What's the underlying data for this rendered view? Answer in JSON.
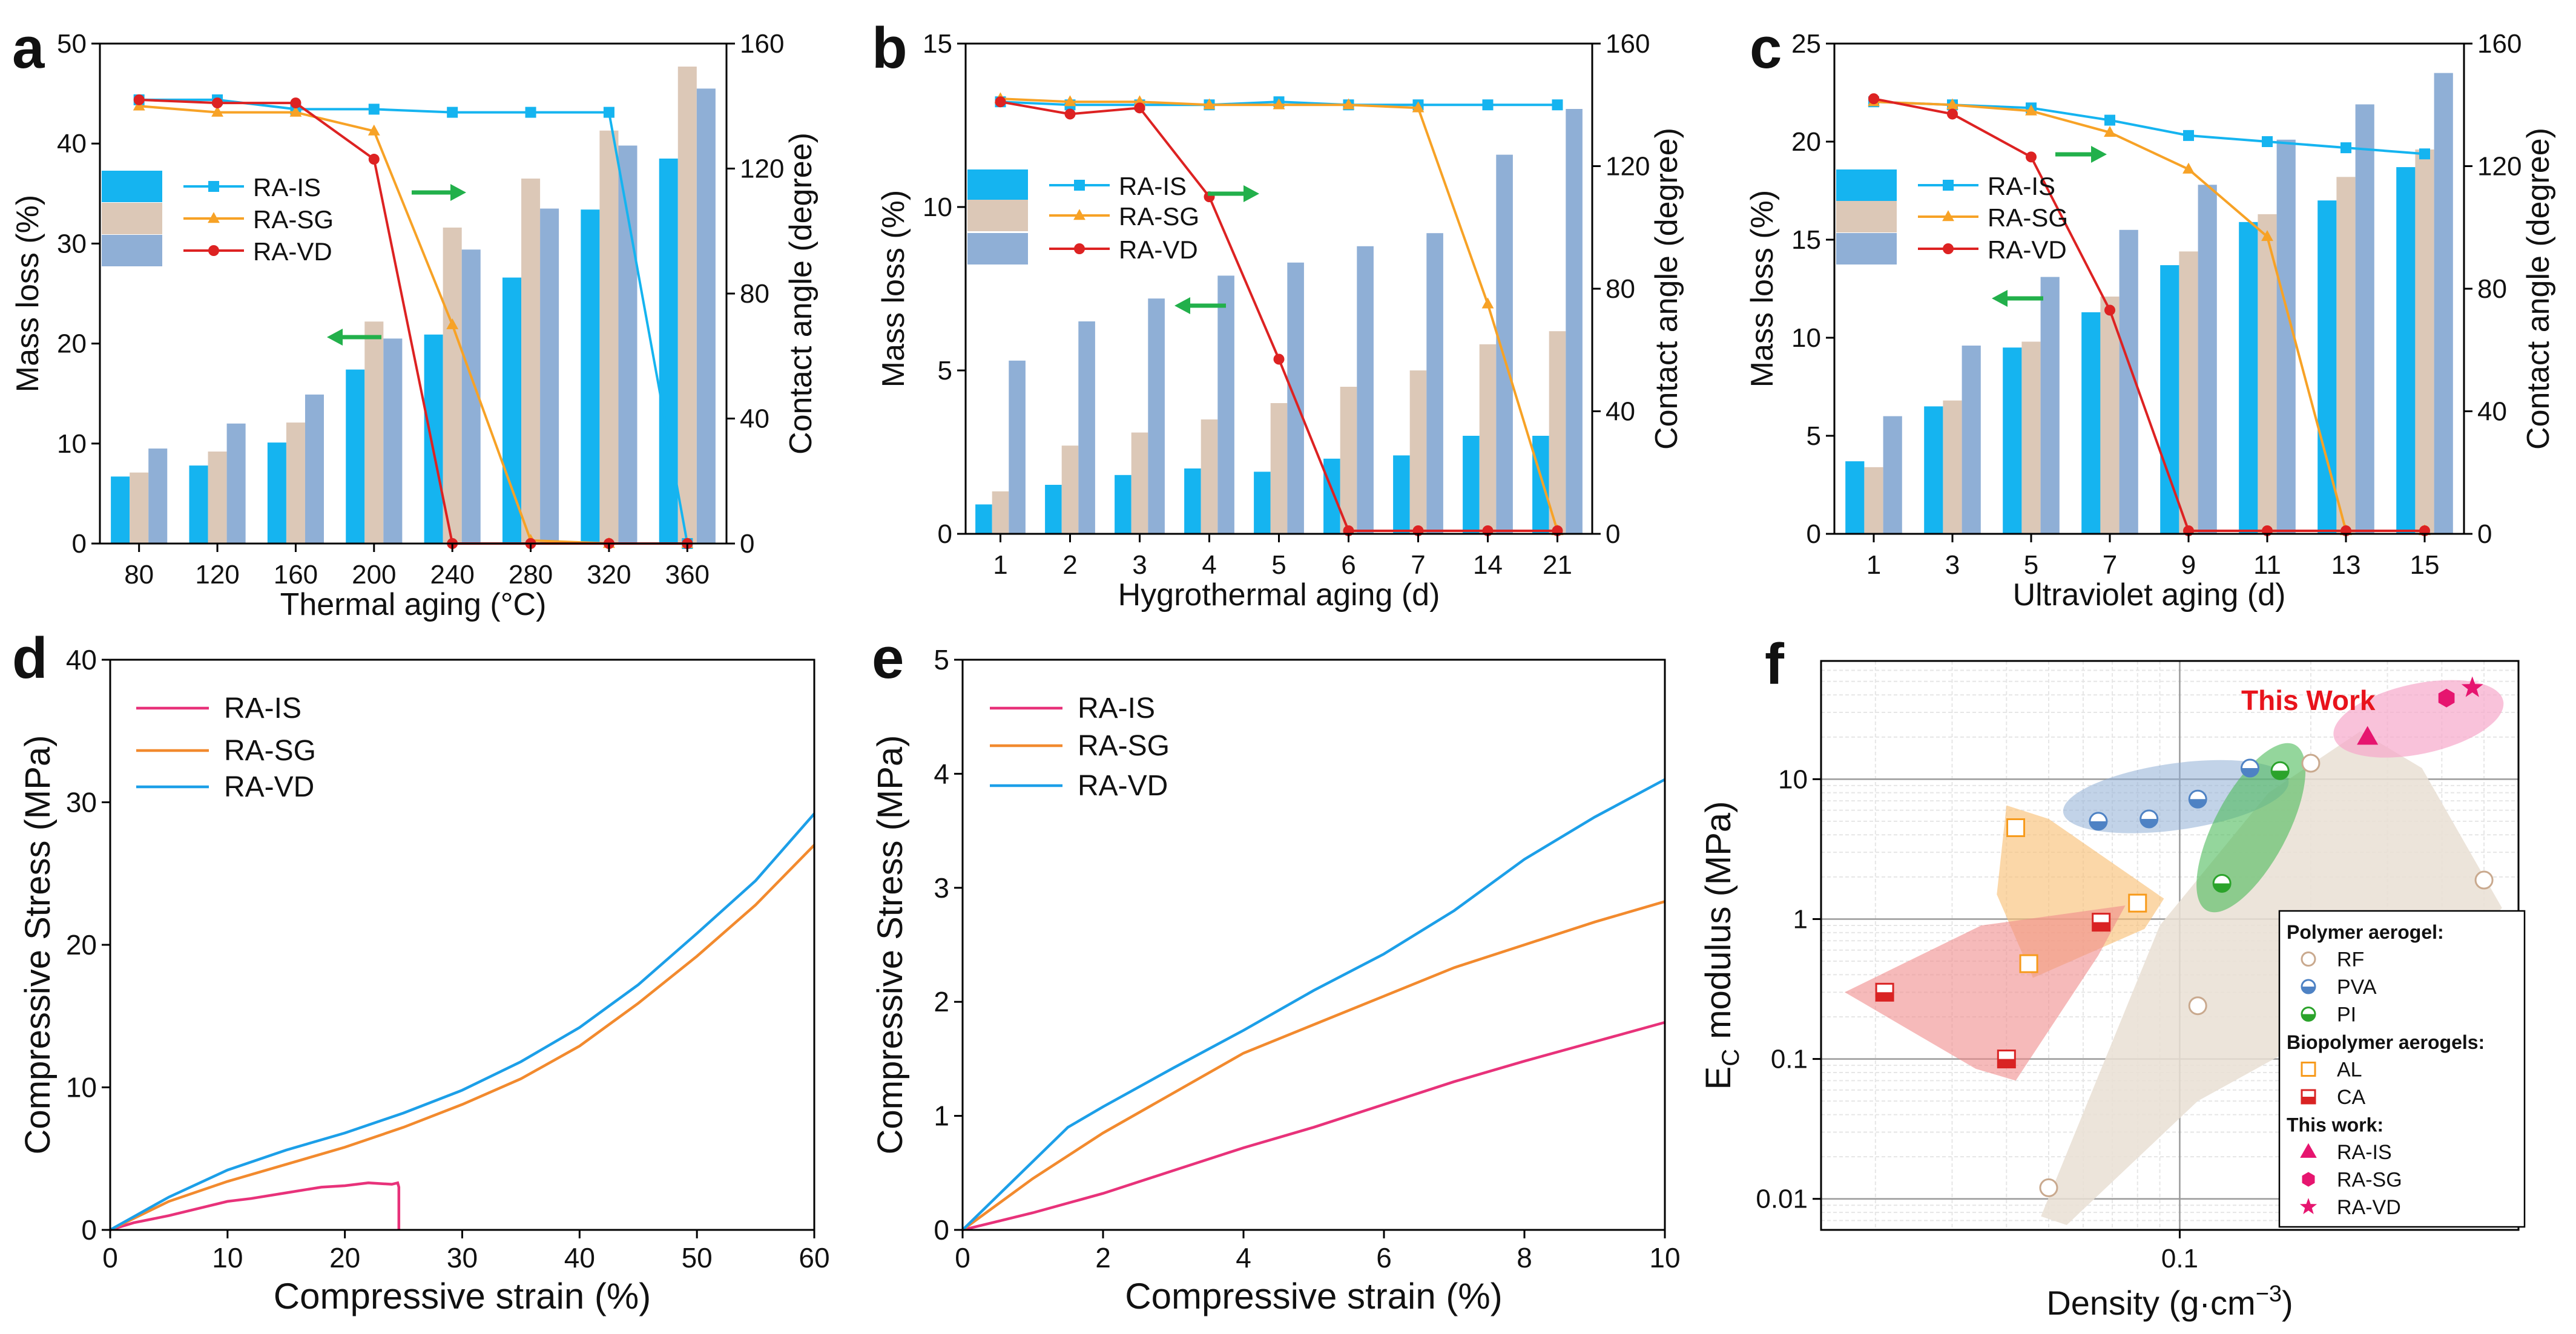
{
  "chart_data": [
    {
      "panel": "a",
      "type": "bar+line",
      "xlabel": "Thermal aging (°C)",
      "ylabel": "Mass loss (%)",
      "y2label": "Contact angle (degree)",
      "categories": [
        "80",
        "120",
        "160",
        "200",
        "240",
        "280",
        "320",
        "360"
      ],
      "ylim": [
        0,
        50
      ],
      "yticks": [
        0,
        10,
        20,
        30,
        40,
        50
      ],
      "y2lim": [
        0,
        160
      ],
      "y2ticks": [
        0,
        40,
        80,
        120,
        160
      ],
      "bars": [
        {
          "name": "RA-IS",
          "color": "#15B4F0",
          "values": [
            6.7,
            7.8,
            10.1,
            17.4,
            20.9,
            26.6,
            33.4,
            38.5
          ]
        },
        {
          "name": "RA-SG",
          "color": "#DCC8B7",
          "values": [
            7.1,
            9.2,
            12.1,
            22.2,
            31.6,
            36.5,
            41.3,
            47.7
          ]
        },
        {
          "name": "RA-VD",
          "color": "#8FAFD6",
          "values": [
            9.5,
            12.0,
            14.9,
            20.5,
            29.4,
            33.5,
            39.8,
            45.5
          ]
        }
      ],
      "lines": [
        {
          "name": "RA-IS",
          "color": "#15B4F0",
          "marker": "square",
          "values": [
            142,
            142,
            139,
            139,
            138,
            138,
            138,
            0
          ]
        },
        {
          "name": "RA-SG",
          "color": "#F7A226",
          "marker": "triangle",
          "values": [
            140,
            138,
            138,
            132,
            70,
            1,
            0,
            0
          ]
        },
        {
          "name": "RA-VD",
          "color": "#DD2222",
          "marker": "circle",
          "values": [
            142,
            141,
            141,
            123,
            0,
            0,
            0,
            0
          ]
        }
      ]
    },
    {
      "panel": "b",
      "type": "bar+line",
      "xlabel": "Hygrothermal aging (d)",
      "ylabel": "Mass loss (%)",
      "y2label": "Contact angle (degree)",
      "categories": [
        "1",
        "2",
        "3",
        "4",
        "5",
        "6",
        "7",
        "14",
        "21"
      ],
      "ylim": [
        0,
        15
      ],
      "yticks": [
        0,
        5,
        10,
        15
      ],
      "y2lim": [
        0,
        160
      ],
      "y2ticks": [
        0,
        40,
        80,
        120,
        160
      ],
      "bars": [
        {
          "name": "RA-IS",
          "color": "#15B4F0",
          "values": [
            0.9,
            1.5,
            1.8,
            2.0,
            1.9,
            2.3,
            2.4,
            3.0,
            3.0
          ]
        },
        {
          "name": "RA-SG",
          "color": "#DCC8B7",
          "values": [
            1.3,
            2.7,
            3.1,
            3.5,
            4.0,
            4.5,
            5.0,
            5.8,
            6.2
          ]
        },
        {
          "name": "RA-VD",
          "color": "#8FAFD6",
          "values": [
            5.3,
            6.5,
            7.2,
            7.9,
            8.3,
            8.8,
            9.2,
            11.6,
            13.0
          ]
        }
      ],
      "lines": [
        {
          "name": "RA-IS",
          "color": "#15B4F0",
          "marker": "square",
          "values": [
            141,
            140,
            140,
            140,
            141,
            140,
            140,
            140,
            140
          ]
        },
        {
          "name": "RA-SG",
          "color": "#F7A226",
          "marker": "triangle",
          "values": [
            142,
            141,
            141,
            140,
            140,
            140,
            139,
            75,
            1
          ]
        },
        {
          "name": "RA-VD",
          "color": "#DD2222",
          "marker": "circle",
          "values": [
            141,
            137,
            139,
            110,
            57,
            1,
            1,
            1,
            1
          ]
        }
      ]
    },
    {
      "panel": "c",
      "type": "bar+line",
      "xlabel": "Ultraviolet aging (d)",
      "ylabel": "Mass loss (%)",
      "y2label": "Contact angle (degree)",
      "categories": [
        "1",
        "3",
        "5",
        "7",
        "9",
        "11",
        "13",
        "15"
      ],
      "ylim": [
        0,
        25
      ],
      "yticks": [
        0,
        5,
        10,
        15,
        20,
        25
      ],
      "y2lim": [
        0,
        160
      ],
      "y2ticks": [
        0,
        40,
        80,
        120,
        160
      ],
      "bars": [
        {
          "name": "RA-IS",
          "color": "#15B4F0",
          "values": [
            3.7,
            6.5,
            9.5,
            11.3,
            13.7,
            15.9,
            17.0,
            18.7
          ]
        },
        {
          "name": "RA-SG",
          "color": "#DCC8B7",
          "values": [
            3.4,
            6.8,
            9.8,
            12.1,
            14.4,
            16.3,
            18.2,
            19.6
          ]
        },
        {
          "name": "RA-VD",
          "color": "#8FAFD6",
          "values": [
            6.0,
            9.6,
            13.1,
            15.5,
            17.8,
            20.1,
            21.9,
            23.5
          ]
        }
      ],
      "lines": [
        {
          "name": "RA-IS",
          "color": "#15B4F0",
          "marker": "square",
          "values": [
            141,
            140,
            139,
            135,
            130,
            128,
            126,
            124
          ]
        },
        {
          "name": "RA-SG",
          "color": "#F7A226",
          "marker": "triangle",
          "values": [
            141,
            140,
            138,
            131,
            119,
            97,
            1,
            1
          ]
        },
        {
          "name": "RA-VD",
          "color": "#DD2222",
          "marker": "circle",
          "values": [
            142,
            137,
            123,
            73,
            1,
            1,
            1,
            1
          ]
        }
      ]
    },
    {
      "panel": "d",
      "type": "line",
      "xlabel": "Compressive strain (%)",
      "ylabel": "Compressive Stress (MPa)",
      "xlim": [
        0,
        60
      ],
      "xticks": [
        0,
        10,
        20,
        30,
        40,
        50,
        60
      ],
      "ylim": [
        0,
        40
      ],
      "yticks": [
        0,
        10,
        20,
        30,
        40
      ],
      "series": [
        {
          "name": "RA-IS",
          "color": "#E8327A",
          "x": [
            0,
            2,
            5,
            8,
            10,
            12,
            15,
            18,
            20,
            22,
            24,
            24.5,
            24.6,
            24.6
          ],
          "y": [
            0,
            0.5,
            1.0,
            1.6,
            2.0,
            2.2,
            2.6,
            3.0,
            3.1,
            3.3,
            3.2,
            3.3,
            3.0,
            0
          ]
        },
        {
          "name": "RA-SG",
          "color": "#F28A2E",
          "x": [
            0,
            5,
            10,
            15,
            20,
            25,
            30,
            35,
            40,
            45,
            50,
            55,
            60
          ],
          "y": [
            0,
            2.0,
            3.4,
            4.6,
            5.8,
            7.2,
            8.8,
            10.6,
            12.9,
            15.9,
            19.2,
            22.8,
            27.0
          ]
        },
        {
          "name": "RA-VD",
          "color": "#1C9FE8",
          "x": [
            0,
            5,
            10,
            15,
            20,
            25,
            30,
            35,
            40,
            45,
            50,
            55,
            60
          ],
          "y": [
            0,
            2.3,
            4.2,
            5.6,
            6.8,
            8.2,
            9.8,
            11.8,
            14.2,
            17.2,
            20.8,
            24.5,
            29.2
          ]
        }
      ]
    },
    {
      "panel": "e",
      "type": "line",
      "xlabel": "Compressive strain (%)",
      "ylabel": "Compressive Stress (MPa)",
      "xlim": [
        0,
        10
      ],
      "xticks": [
        0,
        2,
        4,
        6,
        8,
        10
      ],
      "ylim": [
        0,
        5
      ],
      "yticks": [
        0,
        1,
        2,
        3,
        4,
        5
      ],
      "series": [
        {
          "name": "RA-IS",
          "color": "#E8327A",
          "x": [
            0,
            1,
            2,
            3,
            4,
            5,
            6,
            7,
            8,
            9,
            10
          ],
          "y": [
            0,
            0.15,
            0.32,
            0.52,
            0.72,
            0.9,
            1.1,
            1.3,
            1.48,
            1.65,
            1.82
          ]
        },
        {
          "name": "RA-SG",
          "color": "#F28A2E",
          "x": [
            0,
            1,
            2,
            3,
            4,
            5,
            6,
            7,
            8,
            9,
            10
          ],
          "y": [
            0,
            0.45,
            0.85,
            1.2,
            1.55,
            1.8,
            2.05,
            2.3,
            2.5,
            2.7,
            2.88
          ]
        },
        {
          "name": "RA-VD",
          "color": "#1C9FE8",
          "x": [
            0,
            1,
            1.5,
            2,
            3,
            4,
            5,
            6,
            7,
            8,
            9,
            10
          ],
          "y": [
            0,
            0.6,
            0.9,
            1.08,
            1.42,
            1.75,
            2.1,
            2.42,
            2.8,
            3.25,
            3.62,
            3.95
          ]
        }
      ]
    },
    {
      "panel": "f",
      "type": "scatter",
      "xscale": "log",
      "yscale": "log",
      "xlabel_main": "Density (g·cm",
      "xlabel_sup": "−3",
      "xlabel_end": ")",
      "ylabel_main": "E",
      "ylabel_sub": "C",
      "ylabel_end": " modulus (MPa)",
      "xlim": [
        0.015,
        0.6
      ],
      "xtick_label": "0.1",
      "ylim": [
        0.006,
        70
      ],
      "ytick_labels": [
        "0.01",
        "0.1",
        "1",
        "10"
      ],
      "annotation": "This Work",
      "legend_groups": {
        "polymer": "Polymer aerogel:",
        "bio": "Biopolymer aerogels:",
        "work": "This work:"
      },
      "series": [
        {
          "name": "RF",
          "color": "#C9A98E",
          "marker": "circle-open",
          "x": [
            0.05,
            0.11,
            0.2,
            0.5
          ],
          "y": [
            0.012,
            0.24,
            13,
            1.9
          ]
        },
        {
          "name": "PVA",
          "color": "#4E82C4",
          "marker": "circle-half",
          "x": [
            0.065,
            0.085,
            0.11,
            0.145
          ],
          "y": [
            5,
            5.2,
            7.2,
            12
          ]
        },
        {
          "name": "PI",
          "color": "#2BA32B",
          "marker": "circle-half",
          "x": [
            0.125,
            0.17
          ],
          "y": [
            1.8,
            11.5
          ]
        },
        {
          "name": "AL",
          "color": "#F79A1B",
          "marker": "square-open",
          "x": [
            0.042,
            0.045,
            0.08
          ],
          "y": [
            4.5,
            0.48,
            1.3
          ]
        },
        {
          "name": "CA",
          "color": "#D92323",
          "marker": "square-half",
          "x": [
            0.021,
            0.04,
            0.066
          ],
          "y": [
            0.3,
            0.1,
            0.95
          ]
        },
        {
          "name": "RA-IS",
          "color": "#E6156F",
          "marker": "triangle",
          "x": [
            0.27
          ],
          "y": [
            20
          ]
        },
        {
          "name": "RA-SG",
          "color": "#E6156F",
          "marker": "hexagon",
          "x": [
            0.41
          ],
          "y": [
            38
          ]
        },
        {
          "name": "RA-VD",
          "color": "#E6156F",
          "marker": "star",
          "x": [
            0.47
          ],
          "y": [
            45
          ]
        }
      ]
    }
  ]
}
